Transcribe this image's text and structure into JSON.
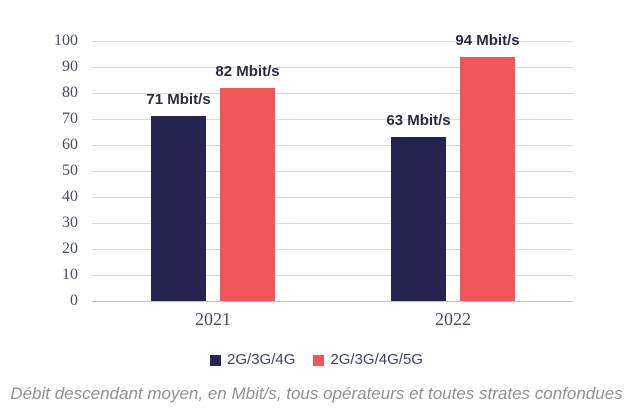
{
  "chart_data": {
    "type": "bar",
    "title": "",
    "categories": [
      "2021",
      "2022"
    ],
    "series": [
      {
        "name": "2G/3G/4G",
        "color": "#252350",
        "values": [
          71,
          63
        ],
        "data_labels": [
          "71 Mbit/s",
          "63 Mbit/s"
        ]
      },
      {
        "name": "2G/3G/4G/5G",
        "color": "#f05557",
        "values": [
          82,
          94
        ],
        "data_labels": [
          "82 Mbit/s",
          "94 Mbit/s"
        ]
      }
    ],
    "xlabel": "",
    "ylabel": "",
    "ylim": [
      0,
      100
    ],
    "yticks": [
      0,
      10,
      20,
      30,
      40,
      50,
      60,
      70,
      80,
      90,
      100
    ],
    "grid": true,
    "legend_position": "bottom"
  },
  "caption": "Débit descendant moyen, en Mbit/s, tous opérateurs et toutes strates confondues",
  "colors": {
    "gridline": "#dadada",
    "baseline": "#c2c2c2",
    "axis_text": "#474d60",
    "value_label_text": "#2b2b40",
    "legend_text": "#3c4460",
    "caption_text": "#8e9094"
  }
}
